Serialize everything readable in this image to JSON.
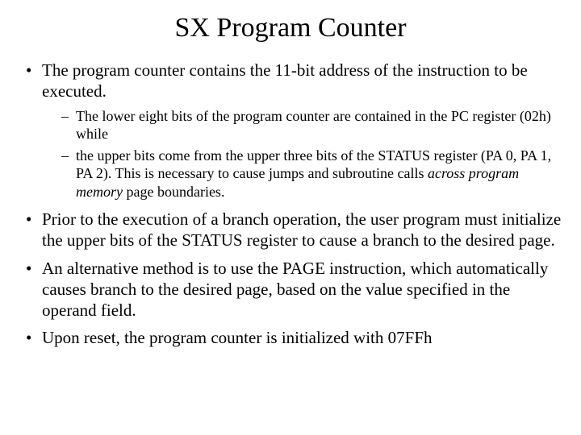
{
  "title": "SX Program Counter",
  "bullets": {
    "b1": "The program counter contains the 11-bit address of the instruction to be executed.",
    "b1_sub": {
      "s1": "The lower eight bits of the program counter are contained in the PC register (02h) while",
      "s2_pre": "the upper bits come from the upper three bits of the STATUS register (PA 0, PA 1, PA 2). This is necessary to cause jumps and subroutine calls ",
      "s2_em": "across program memory",
      "s2_post": " page boundaries."
    },
    "b2": "Prior to the execution of a branch operation, the user program must initialize the upper bits of the STATUS register to cause a branch to the desired page.",
    "b3": "An alternative method is to use the PAGE instruction, which automatically causes branch to the desired page, based on the value specified in the operand field.",
    "b4": "Upon reset, the program counter is initialized with 07FFh"
  },
  "style": {
    "background_color": "#ffffff",
    "text_color": "#000000",
    "title_fontsize": 34,
    "body_fontsize": 21,
    "sub_fontsize": 18,
    "font_family": "Times New Roman"
  }
}
